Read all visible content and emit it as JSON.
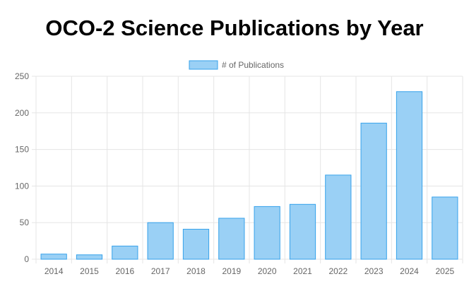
{
  "chart_data": {
    "type": "bar",
    "title": "OCO-2 Science Publications by Year",
    "categories": [
      "2014",
      "2015",
      "2016",
      "2017",
      "2018",
      "2019",
      "2020",
      "2021",
      "2022",
      "2023",
      "2024",
      "2025"
    ],
    "series": [
      {
        "name": "# of Publications",
        "values": [
          7,
          6,
          18,
          50,
          41,
          56,
          72,
          75,
          115,
          186,
          229,
          85
        ]
      }
    ],
    "ylim": [
      0,
      250
    ],
    "yticks": [
      0,
      50,
      100,
      150,
      200,
      250
    ],
    "grid": true,
    "legend_position": "top",
    "colors": {
      "bar_fill": "#9ad0f5",
      "bar_stroke": "#36a2eb",
      "grid": "#e5e5e5"
    }
  }
}
